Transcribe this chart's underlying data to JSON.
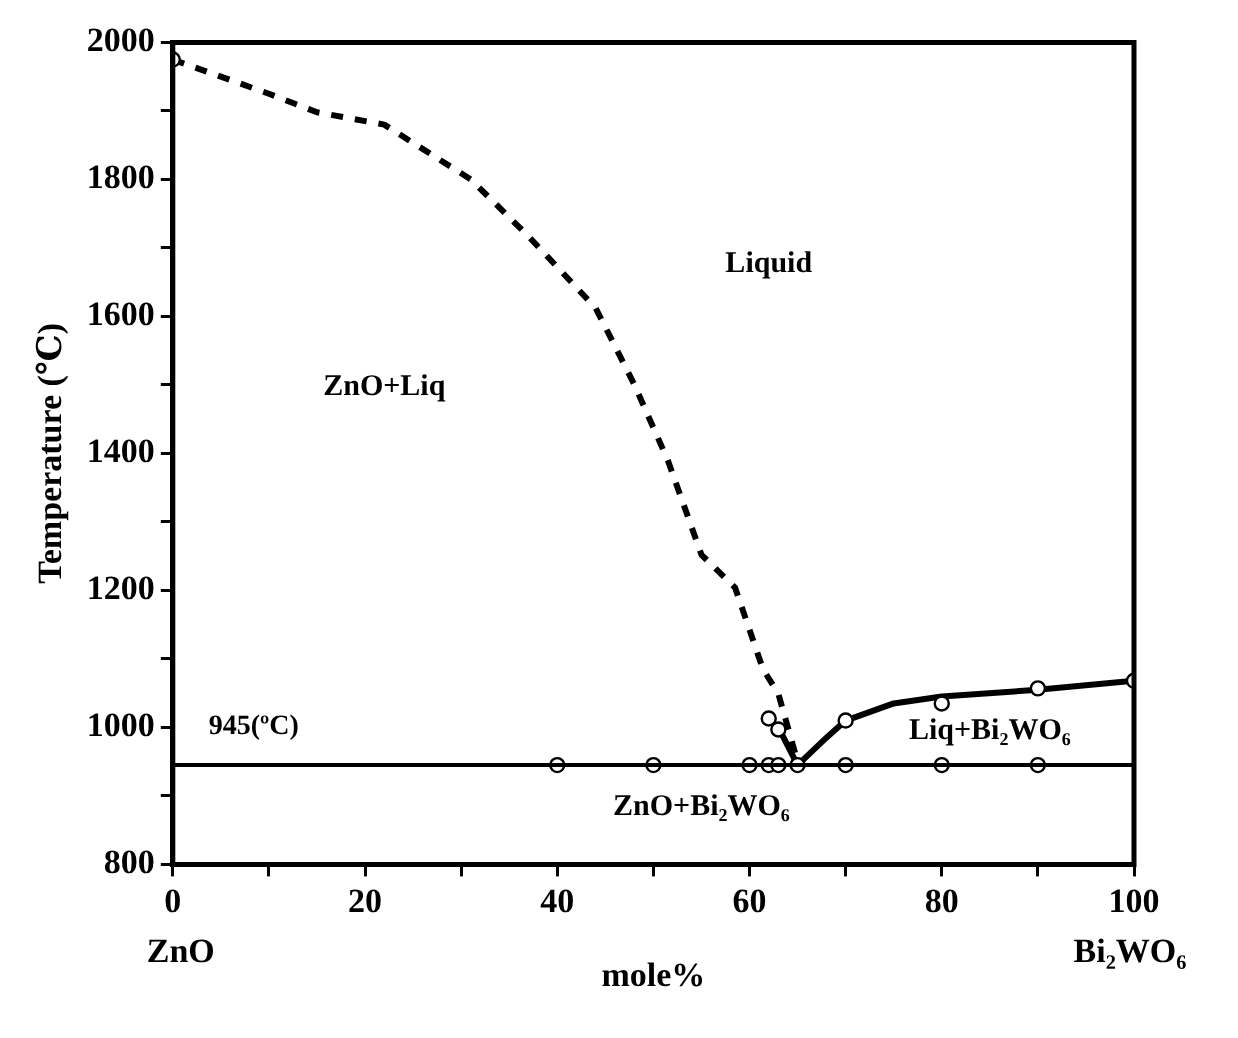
{
  "chart_data": {
    "type": "line",
    "xlabel": "mole%",
    "ylabel": "Temperature (℃)",
    "xlim": [
      0,
      100
    ],
    "ylim": [
      800,
      2000
    ],
    "xticks": [
      0,
      {
        "value": 10,
        "label": null
      },
      20,
      {
        "value": 30,
        "label": null
      },
      40,
      {
        "value": 50,
        "label": null
      },
      60,
      {
        "value": 70,
        "label": null
      },
      80,
      {
        "value": 90,
        "label": null
      },
      100
    ],
    "yticks": [
      800,
      {
        "value": 900,
        "label": null
      },
      1000,
      {
        "value": 1100,
        "label": null
      },
      1200,
      {
        "value": 1300,
        "label": null
      },
      1400,
      {
        "value": 1500,
        "label": null
      },
      1600,
      {
        "value": 1700,
        "label": null
      },
      1800,
      {
        "value": 1900,
        "label": null
      },
      2000
    ],
    "grid": false,
    "legend": false,
    "series": [
      {
        "line_style": "dashed",
        "marker": "none",
        "color": "#000000",
        "x": [
          0,
          10,
          15,
          22,
          31,
          37,
          44,
          48,
          51.5,
          55,
          58.5,
          61.4,
          63,
          65
        ],
        "values": [
          1975,
          1925,
          1898,
          1880,
          1800,
          1717,
          1612,
          1501,
          1390,
          1252,
          1204,
          1085,
          1049,
          950
        ]
      },
      {
        "line_style": "solid",
        "marker": "none",
        "color": "#000000",
        "x": [
          63,
          65,
          68,
          70,
          75,
          80,
          90,
          100
        ],
        "values": [
          1000,
          945,
          985,
          1010,
          1035,
          1045,
          1055,
          1068
        ]
      },
      {
        "type": "scatter",
        "marker": "circle",
        "color": "#000000",
        "x": [
          0,
          40,
          50,
          60,
          62,
          63,
          65,
          70,
          80,
          90,
          62,
          63,
          70,
          80,
          90,
          100
        ],
        "values": [
          1975,
          945,
          945,
          945,
          945,
          945,
          945,
          945,
          945,
          945,
          1013,
          997,
          1010,
          1035,
          1057,
          1068
        ]
      }
    ],
    "ref_lines": [
      {
        "axis": "y",
        "value": 945,
        "label": "945(ºC)",
        "color": "#000000",
        "line_style": "solid"
      }
    ],
    "annotations": [
      "ZnO",
      "Bi₂WO₆",
      "Liquid",
      "ZnO+Liq",
      "Liq+Bi₂WO₆",
      "ZnO+Bi₂WO₆"
    ]
  }
}
